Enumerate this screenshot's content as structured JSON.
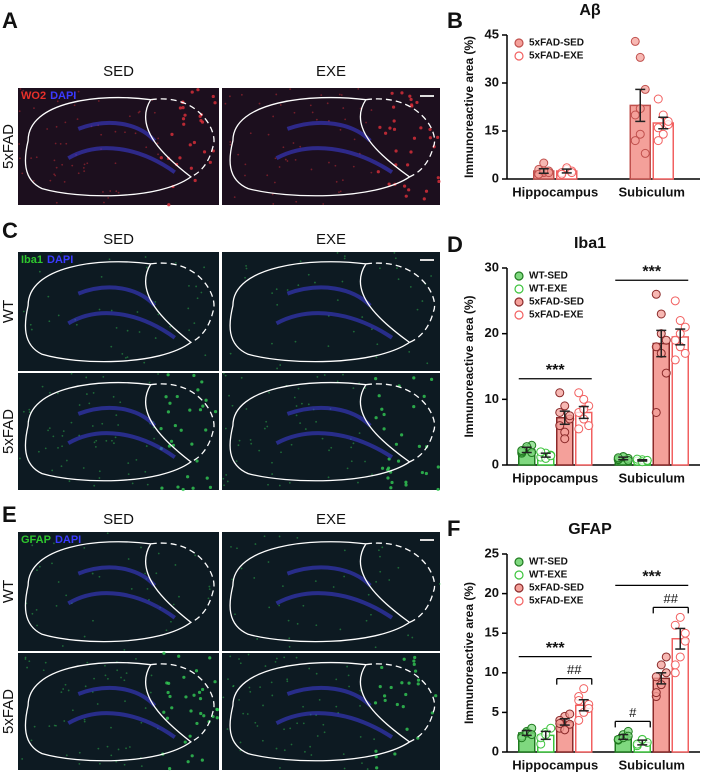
{
  "panels": [
    {
      "letter": "A",
      "columns": [
        "SED",
        "EXE"
      ],
      "rows": [
        "5xFAD"
      ],
      "stain": [
        {
          "label": "WO2",
          "color": "#e8302a"
        },
        {
          "label": "DAPI",
          "color": "#3a3aff"
        }
      ]
    },
    {
      "letter": "C",
      "columns": [
        "SED",
        "EXE"
      ],
      "rows": [
        "WT",
        "5xFAD"
      ],
      "stain": [
        {
          "label": "Iba1",
          "color": "#2ec62e"
        },
        {
          "label": "DAPI",
          "color": "#3a3aff"
        }
      ]
    },
    {
      "letter": "E",
      "columns": [
        "SED",
        "EXE"
      ],
      "rows": [
        "WT",
        "5xFAD"
      ],
      "stain": [
        {
          "label": "GFAP",
          "color": "#2ec62e"
        },
        {
          "label": "DAPI",
          "color": "#3a3aff"
        }
      ]
    }
  ],
  "chart_data": [
    {
      "type": "bar",
      "panel": "B",
      "title": "Aβ",
      "ylabel": "Immunoreactive area  (%)",
      "categories": [
        "Hippocampus",
        "Subiculum"
      ],
      "ylim": [
        0,
        45
      ],
      "yticks": [
        0,
        15,
        30,
        45
      ],
      "legend": "upper left",
      "series": [
        {
          "name": "5xFAD-SED",
          "color": "#f4a09a",
          "edge": "#c0504d",
          "values": [
            2.5,
            23
          ],
          "errors": [
            0.7,
            5
          ],
          "points": [
            [
              1.5,
              2,
              2.5,
              3,
              5,
              2,
              1.5,
              2.5
            ],
            [
              43,
              38,
              28,
              20,
              14,
              8,
              12,
              22
            ]
          ]
        },
        {
          "name": "5xFAD-EXE",
          "color": "#ffffff",
          "edge": "#f26060",
          "values": [
            2.5,
            17.5
          ],
          "errors": [
            0.6,
            1.8
          ],
          "points": [
            [
              2,
              3,
              2.5,
              1.5,
              3.5,
              2
            ],
            [
              25,
              20,
              17,
              16,
              14,
              18,
              12
            ]
          ]
        }
      ],
      "annotations": []
    },
    {
      "type": "bar",
      "panel": "D",
      "title": "Iba1",
      "ylabel": "Immunoreactive area  (%)",
      "categories": [
        "Hippocampus",
        "Subiculum"
      ],
      "ylim": [
        0,
        30
      ],
      "yticks": [
        0,
        10,
        20,
        30
      ],
      "legend": "upper left",
      "series": [
        {
          "name": "WT-SED",
          "color": "#7fd87f",
          "edge": "#1f7a1f",
          "values": [
            2.3,
            1.0
          ],
          "errors": [
            0.4,
            0.2
          ],
          "points": [
            [
              1.8,
              2.5,
              3.0,
              2.0,
              2.8,
              1.9,
              2.2
            ],
            [
              0.8,
              1.2,
              1.0,
              0.9,
              1.3,
              0.7,
              1.1
            ]
          ]
        },
        {
          "name": "WT-EXE",
          "color": "#ffffff",
          "edge": "#3cc43c",
          "values": [
            1.5,
            0.7
          ],
          "errors": [
            0.3,
            0.1
          ],
          "points": [
            [
              1.2,
              1.8,
              1.5,
              2.0,
              1.0,
              1.4
            ],
            [
              0.6,
              0.8,
              0.7,
              0.9,
              0.5,
              0.7
            ]
          ]
        },
        {
          "name": "5xFAD-SED",
          "color": "#f4a09a",
          "edge": "#8b2a2a",
          "values": [
            7.2,
            18.5
          ],
          "errors": [
            1.0,
            2.0
          ],
          "points": [
            [
              11,
              9,
              7,
              6,
              5,
              7.5,
              8,
              4
            ],
            [
              26,
              23,
              19,
              18,
              17,
              14,
              8,
              20
            ]
          ]
        },
        {
          "name": "5xFAD-EXE",
          "color": "#ffffff",
          "edge": "#f26060",
          "values": [
            8.0,
            19.5
          ],
          "errors": [
            0.9,
            1.2
          ],
          "points": [
            [
              11,
              10,
              9,
              8,
              7,
              6,
              5.5,
              8.5
            ],
            [
              25,
              22,
              21,
              19,
              18,
              17,
              16,
              20
            ]
          ]
        }
      ],
      "annotations": [
        {
          "label": "***",
          "category": 0,
          "from": 0,
          "to": 3,
          "bracket": false
        },
        {
          "label": "***",
          "category": 1,
          "from": 0,
          "to": 3,
          "bracket": false
        }
      ]
    },
    {
      "type": "bar",
      "panel": "F",
      "title": "GFAP",
      "ylabel": "Immunoreactive area  (%)",
      "categories": [
        "Hippocampus",
        "Subiculum"
      ],
      "ylim": [
        0,
        25
      ],
      "yticks": [
        0,
        5,
        10,
        15,
        20,
        25
      ],
      "legend": "upper left",
      "series": [
        {
          "name": "WT-SED",
          "color": "#7fd87f",
          "edge": "#1f7a1f",
          "values": [
            2.4,
            1.9
          ],
          "errors": [
            0.3,
            0.3
          ],
          "points": [
            [
              2.0,
              2.6,
              3.0,
              1.8,
              2.4,
              2.2
            ],
            [
              1.5,
              2.2,
              2.6,
              1.6,
              1.8,
              2.0
            ]
          ]
        },
        {
          "name": "WT-EXE",
          "color": "#ffffff",
          "edge": "#3cc43c",
          "values": [
            2.1,
            1.2
          ],
          "errors": [
            0.5,
            0.3
          ],
          "points": [
            [
              1.0,
              2.5,
              3.0,
              1.8,
              2.2
            ],
            [
              0.8,
              1.5,
              1.2,
              1.0,
              1.6
            ]
          ]
        },
        {
          "name": "5xFAD-SED",
          "color": "#f4a09a",
          "edge": "#8b2a2a",
          "values": [
            3.8,
            9.3
          ],
          "errors": [
            0.4,
            0.7
          ],
          "points": [
            [
              3.0,
              4.5,
              3.5,
              4.0,
              2.8,
              4.8,
              3.6
            ],
            [
              7,
              11,
              10,
              9.5,
              8.5,
              12,
              7.5
            ]
          ]
        },
        {
          "name": "5xFAD-EXE",
          "color": "#ffffff",
          "edge": "#f26060",
          "values": [
            5.9,
            14.3
          ],
          "errors": [
            0.7,
            1.3
          ],
          "points": [
            [
              4,
              5,
              6,
              7,
              8,
              5.5,
              6.5
            ],
            [
              10,
              12,
              14,
              16,
              17,
              15,
              11
            ]
          ]
        }
      ],
      "annotations": [
        {
          "label": "##",
          "category": 0,
          "from": 2,
          "to": 3,
          "bracket": true
        },
        {
          "label": "***",
          "category": 0,
          "from": 0,
          "to": 3,
          "bracket": false
        },
        {
          "label": "#",
          "category": 1,
          "from": 0,
          "to": 1,
          "bracket": true
        },
        {
          "label": "##",
          "category": 1,
          "from": 2,
          "to": 3,
          "bracket": true
        },
        {
          "label": "***",
          "category": 1,
          "from": 0,
          "to": 3,
          "bracket": false
        }
      ]
    }
  ]
}
